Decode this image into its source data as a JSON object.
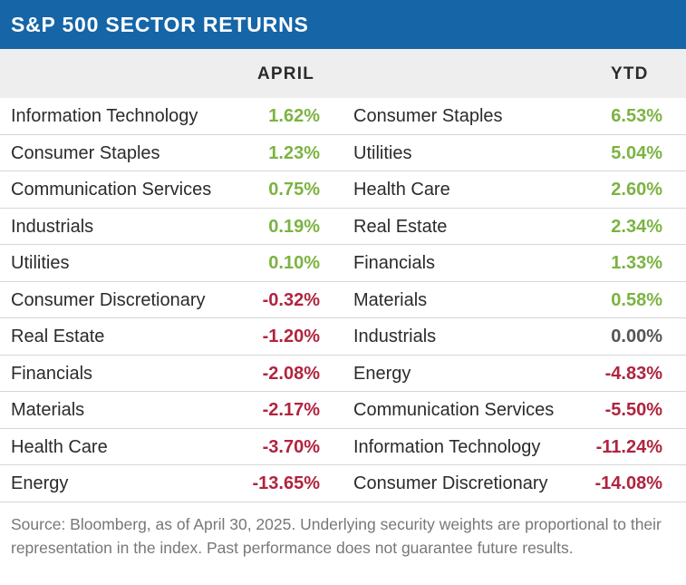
{
  "title": "S&P 500 SECTOR RETURNS",
  "columns": {
    "april": "APRIL",
    "ytd": "YTD"
  },
  "rows": [
    {
      "april_sector": "Information Technology",
      "april_value": "1.62%",
      "april_sign": "pos",
      "ytd_sector": "Consumer Staples",
      "ytd_value": "6.53%",
      "ytd_sign": "pos"
    },
    {
      "april_sector": "Consumer Staples",
      "april_value": "1.23%",
      "april_sign": "pos",
      "ytd_sector": "Utilities",
      "ytd_value": "5.04%",
      "ytd_sign": "pos"
    },
    {
      "april_sector": "Communication Services",
      "april_value": "0.75%",
      "april_sign": "pos",
      "ytd_sector": "Health Care",
      "ytd_value": "2.60%",
      "ytd_sign": "pos"
    },
    {
      "april_sector": "Industrials",
      "april_value": "0.19%",
      "april_sign": "pos",
      "ytd_sector": "Real Estate",
      "ytd_value": "2.34%",
      "ytd_sign": "pos"
    },
    {
      "april_sector": "Utilities",
      "april_value": "0.10%",
      "april_sign": "pos",
      "ytd_sector": "Financials",
      "ytd_value": "1.33%",
      "ytd_sign": "pos"
    },
    {
      "april_sector": "Consumer Discretionary",
      "april_value": "-0.32%",
      "april_sign": "neg",
      "ytd_sector": "Materials",
      "ytd_value": "0.58%",
      "ytd_sign": "pos"
    },
    {
      "april_sector": "Real Estate",
      "april_value": "-1.20%",
      "april_sign": "neg",
      "ytd_sector": "Industrials",
      "ytd_value": "0.00%",
      "ytd_sign": "zero"
    },
    {
      "april_sector": "Financials",
      "april_value": "-2.08%",
      "april_sign": "neg",
      "ytd_sector": "Energy",
      "ytd_value": "-4.83%",
      "ytd_sign": "neg"
    },
    {
      "april_sector": "Materials",
      "april_value": "-2.17%",
      "april_sign": "neg",
      "ytd_sector": "Communication Services",
      "ytd_value": "-5.50%",
      "ytd_sign": "neg"
    },
    {
      "april_sector": "Health Care",
      "april_value": "-3.70%",
      "april_sign": "neg",
      "ytd_sector": "Information Technology",
      "ytd_value": "-11.24%",
      "ytd_sign": "neg"
    },
    {
      "april_sector": "Energy",
      "april_value": "-13.65%",
      "april_sign": "neg",
      "ytd_sector": "Consumer Discretionary",
      "ytd_value": "-14.08%",
      "ytd_sign": "neg"
    }
  ],
  "colors": {
    "header": "#1565a7",
    "positive": "#7cb342",
    "negative": "#b0243f",
    "neutral": "#555555"
  },
  "source": "Source: Bloomberg, as of April 30, 2025. Underlying security weights are proportional to their representation in the index. Past performance does not guarantee future results."
}
